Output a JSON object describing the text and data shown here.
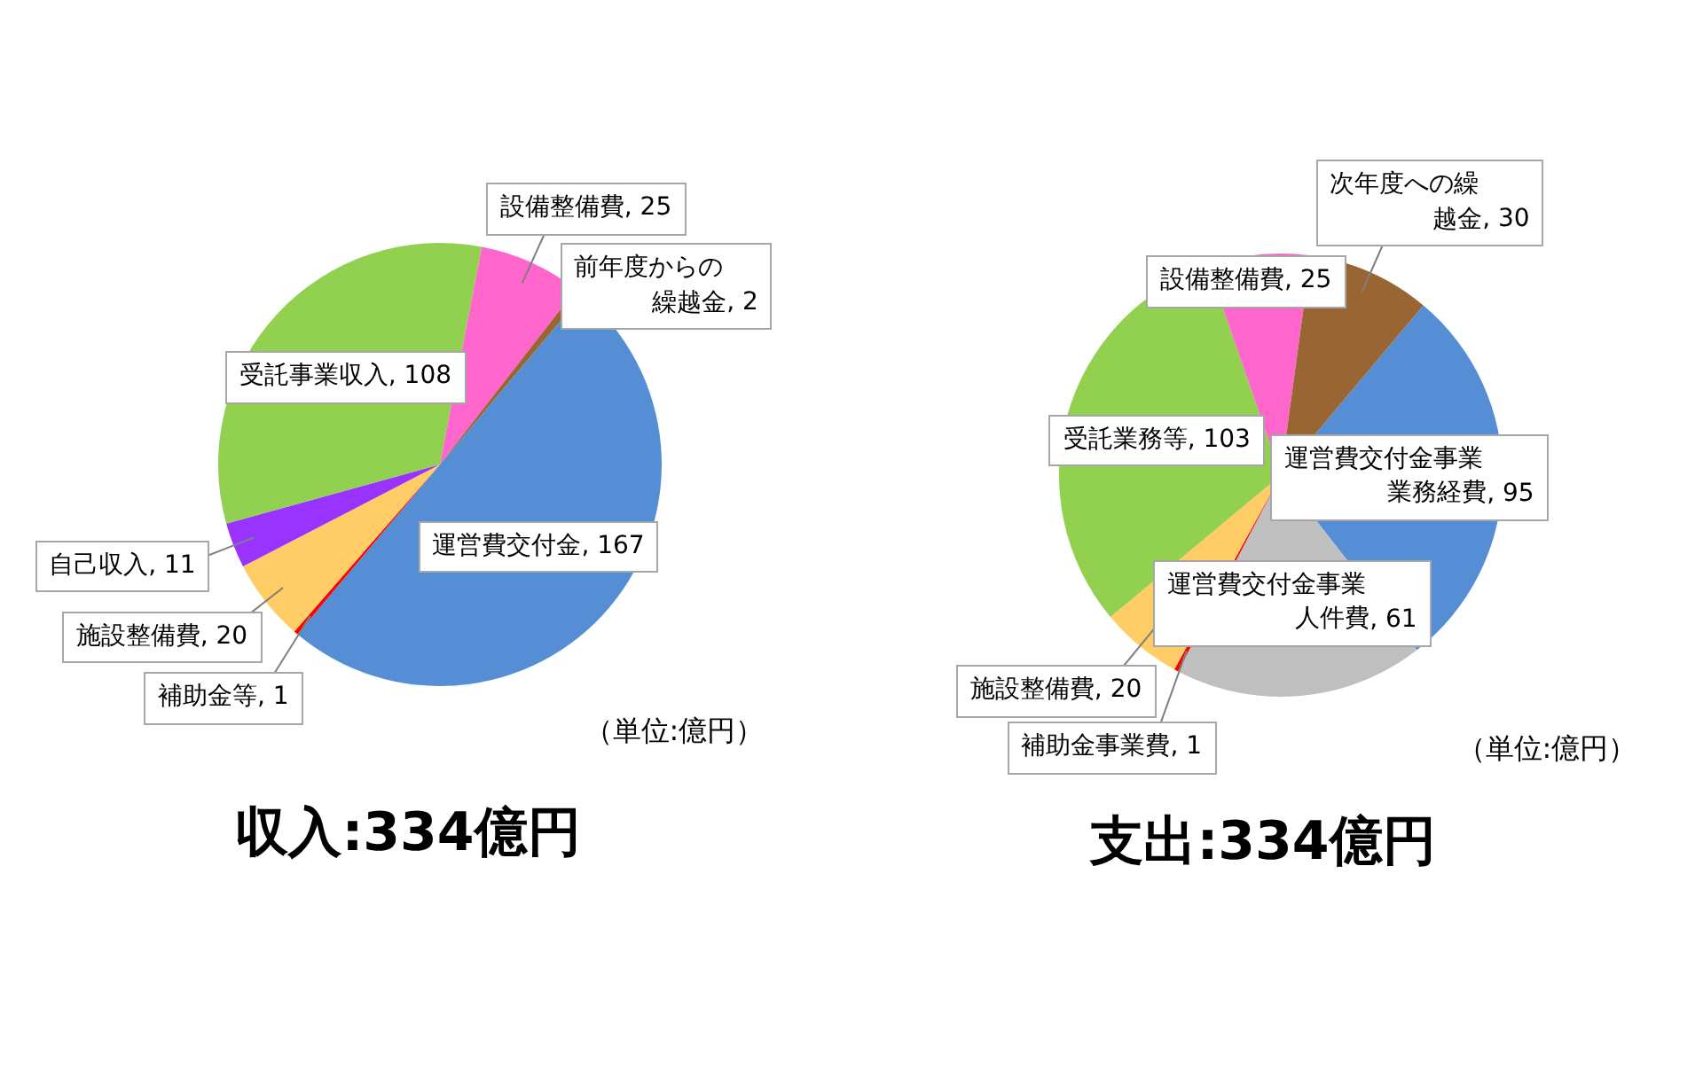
{
  "chart_data": [
    {
      "type": "pie",
      "title": "収入:334億円",
      "categories": [
        "運営費交付金",
        "補助金等",
        "施設整備費",
        "自己収入",
        "受託事業収入",
        "設備整備費",
        "前年度からの繰越金"
      ],
      "values": [
        167,
        1,
        20,
        11,
        108,
        25,
        2
      ],
      "value_labels": [
        ", 167",
        ", 1",
        ", 20",
        ", 11",
        ", 108",
        ", 25",
        ", 2"
      ],
      "colors": [
        "#558ed5",
        "#ff0000",
        "#ffcc66",
        "#9933ff",
        "#92d050",
        "#ff66cc",
        "#996633"
      ],
      "annotations": [
        "（単位:億円）"
      ]
    },
    {
      "type": "pie",
      "title": "支出:334億円",
      "categories": [
        "運営費交付金事業業務経費",
        "運営費交付金事業人件費",
        "補助金事業費",
        "施設整備費",
        "受託業務等",
        "設備整備費",
        "次年度への繰越金"
      ],
      "values": [
        95,
        61,
        1,
        20,
        103,
        25,
        30
      ],
      "value_labels": [
        ", 95",
        ", 61",
        ", 1",
        ", 20",
        ", 103",
        ", 25",
        ", 30"
      ],
      "colors": [
        "#558ed5",
        "#bfbfbf",
        "#ff0000",
        "#ffcc66",
        "#92d050",
        "#ff66cc",
        "#996633"
      ],
      "annotations": [
        "（単位:億円）"
      ]
    }
  ]
}
